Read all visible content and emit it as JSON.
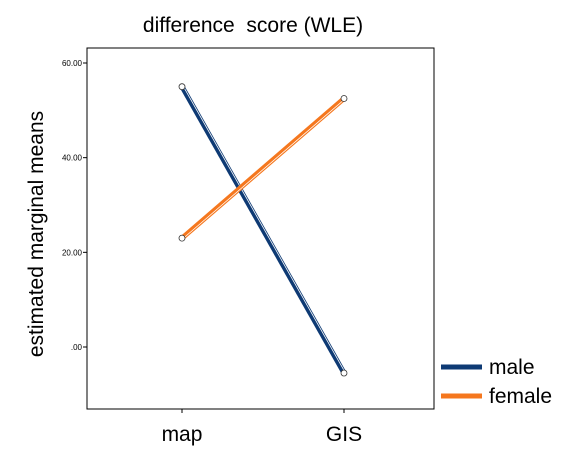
{
  "chart_data": {
    "type": "line",
    "title": "difference  score (WLE)",
    "xlabel": "",
    "ylabel": "estimated marginal means",
    "categories": [
      "map",
      "GIS"
    ],
    "yticks": [
      ".00",
      "20.00",
      "40.00",
      "60.00"
    ],
    "ylim": [
      -13,
      62
    ],
    "grid": false,
    "legend_position": "bottom-right",
    "series": [
      {
        "name": "male",
        "values": [
          55.0,
          -5.5
        ],
        "color": "#0e3a74"
      },
      {
        "name": "female",
        "values": [
          23.0,
          52.5
        ],
        "color": "#f5771e"
      }
    ]
  }
}
